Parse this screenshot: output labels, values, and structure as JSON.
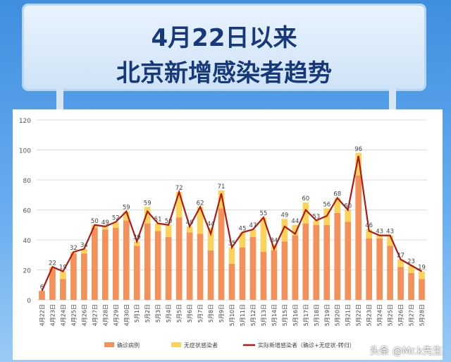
{
  "header": {
    "line1": "4月22日以来",
    "line2": "北京新增感染者趋势"
  },
  "watermark": "头条 @Mr.k先生",
  "chart_data": {
    "type": "bar",
    "stacked": true,
    "categories": [
      "4月22日",
      "4月23日",
      "4月24日",
      "4月25日",
      "4月26日",
      "4月27日",
      "4月28日",
      "4月29日",
      "4月30日",
      "5月1日",
      "5月2日",
      "5月3日",
      "5月4日",
      "5月5日",
      "5月6日",
      "5月7日",
      "5月8日",
      "5月9日",
      "5月10日",
      "5月11日",
      "5月12日",
      "5月13日",
      "5月14日",
      "5月15日",
      "5月16日",
      "5月17日",
      "5月18日",
      "5月19日",
      "5月20日",
      "5月21日",
      "5月22日",
      "5月23日",
      "5月24日",
      "5月25日",
      "5月26日",
      "5月27日",
      "5月28日"
    ],
    "series": [
      {
        "name": "确诊病例",
        "type": "bar",
        "color": "#f4915a",
        "values": [
          6,
          21,
          14,
          31,
          31,
          48,
          47,
          48,
          53,
          36,
          51,
          46,
          42,
          55,
          45,
          44,
          33,
          61,
          24,
          35,
          42,
          32,
          33,
          39,
          43,
          51,
          50,
          50,
          58,
          52,
          83,
          41,
          41,
          36,
          22,
          18,
          14
        ]
      },
      {
        "name": "无症状感染者",
        "type": "bar",
        "color": "#fbd25a",
        "values": [
          0,
          1,
          5,
          1,
          3,
          2,
          2,
          4,
          6,
          3,
          11,
          5,
          8,
          17,
          4,
          18,
          15,
          12,
          11,
          10,
          5,
          23,
          4,
          15,
          7,
          14,
          3,
          11,
          10,
          8,
          15,
          6,
          2,
          7,
          5,
          5,
          5
        ]
      },
      {
        "name": "实际新增感染者（确诊+无症状-转归）",
        "type": "line",
        "color": "#b01a12",
        "values": [
          6,
          22,
          19,
          32,
          34,
          50,
          49,
          52,
          59,
          39,
          59,
          51,
          50,
          72,
          49,
          62,
          44,
          71,
          35,
          45,
          47,
          55,
          34,
          49,
          44,
          60,
          53,
          56,
          68,
          60,
          96,
          46,
          43,
          43,
          27,
          23,
          19
        ]
      }
    ],
    "ylim": [
      0,
      120
    ],
    "yticks": [
      0,
      20,
      40,
      60,
      80,
      100,
      120
    ],
    "grid": true,
    "legend": "bottom"
  }
}
